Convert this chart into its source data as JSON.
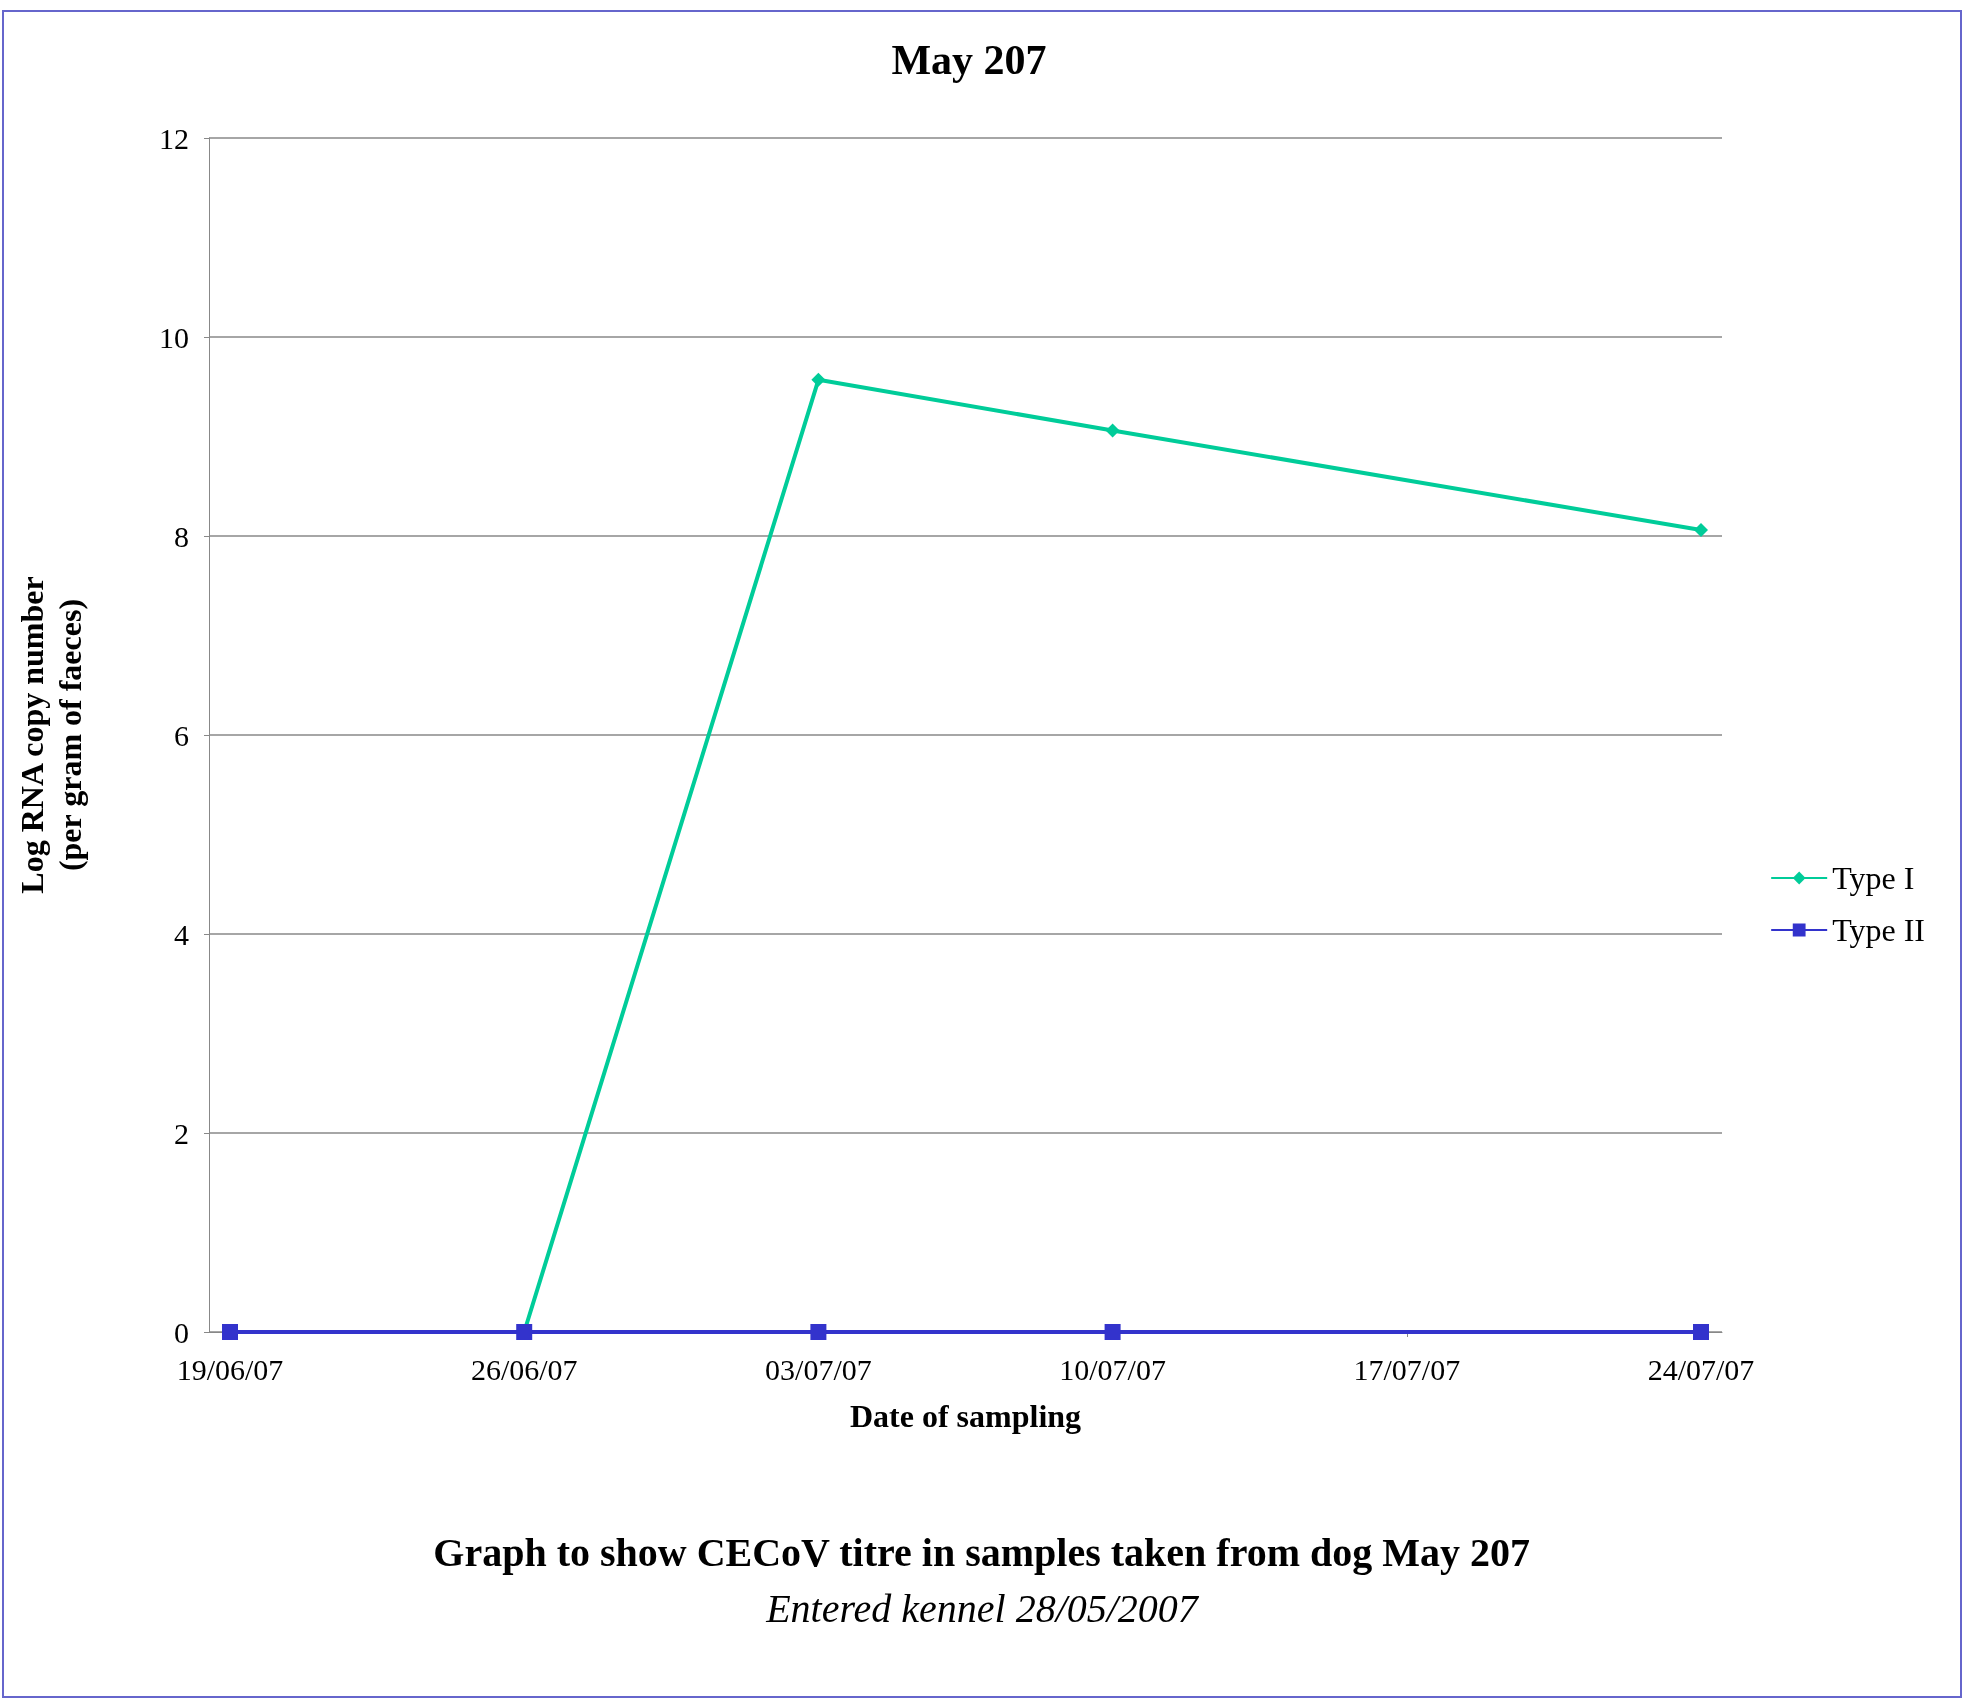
{
  "chart_data": {
    "type": "line",
    "title": "May 207",
    "xlabel": "Date of sampling",
    "ylabel": "Log RNA copy number\n(per gram of faeces)",
    "x": [
      "2007-06-19",
      "2007-06-26",
      "2007-07-03",
      "2007-07-10",
      "2007-07-24"
    ],
    "series": [
      {
        "name": "Type I",
        "color": "#00cc99",
        "marker": "diamond",
        "values": [
          0,
          0,
          9.57,
          9.06,
          8.06
        ]
      },
      {
        "name": "Type II",
        "color": "#3333cc",
        "marker": "square",
        "values": [
          0,
          0,
          0,
          0,
          0
        ]
      }
    ],
    "xlim": [
      "2007-06-18T12:00",
      "2007-07-24T12:00"
    ],
    "xticks": [
      {
        "value": "2007-06-19",
        "label": "19/06/07"
      },
      {
        "value": "2007-06-26",
        "label": "26/06/07"
      },
      {
        "value": "2007-07-03",
        "label": "03/07/07"
      },
      {
        "value": "2007-07-10",
        "label": "10/07/07"
      },
      {
        "value": "2007-07-17",
        "label": "17/07/07"
      },
      {
        "value": "2007-07-24",
        "label": "24/07/07"
      }
    ],
    "ylim": [
      0,
      12
    ],
    "yticks": [
      0,
      2,
      4,
      6,
      8,
      10,
      12
    ],
    "grid": "y",
    "legend": "right",
    "line_style": "solid",
    "annotations": [
      "Graph to show CECoV titre in samples taken from dog May 207",
      "Entered kennel 28/05/2007"
    ]
  }
}
